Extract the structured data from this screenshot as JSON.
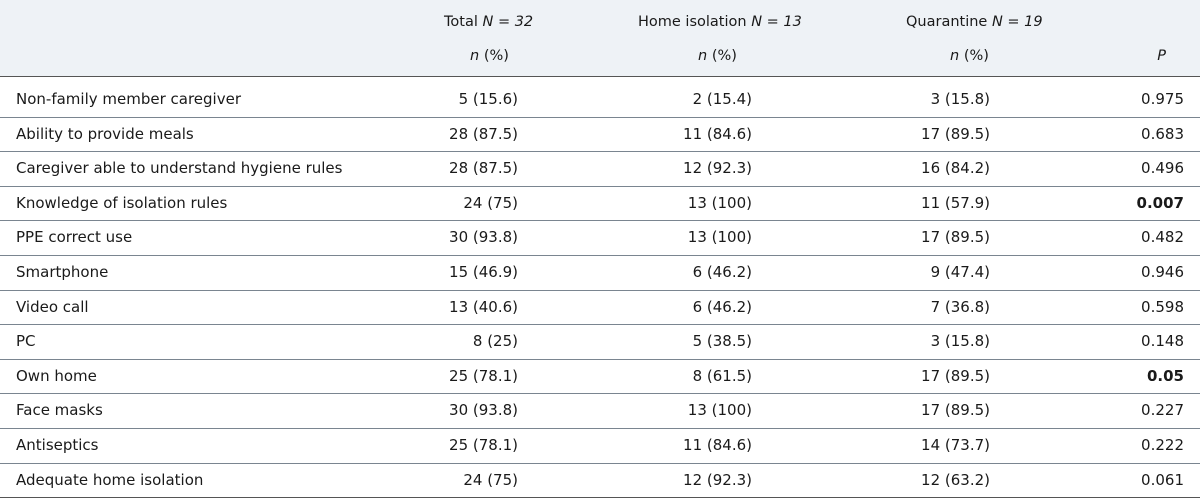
{
  "header": {
    "total": "Total",
    "total_n": "N = 32",
    "home": "Home isolation",
    "home_n": "N = 13",
    "quarantine": "Quarantine",
    "quarantine_n": "N = 19",
    "sub_n": "n",
    "sub_pct": "(%)",
    "p": "P"
  },
  "rows": [
    {
      "label": "Non-family member caregiver",
      "total": "5 (15.6)",
      "home": "2 (15.4)",
      "quarantine": "3 (15.8)",
      "p": "0.975",
      "p_bold": false
    },
    {
      "label": "Ability to provide meals",
      "total": "28 (87.5)",
      "home": "11 (84.6)",
      "quarantine": "17 (89.5)",
      "p": "0.683",
      "p_bold": false
    },
    {
      "label": "Caregiver able to understand hygiene rules",
      "total": "28 (87.5)",
      "home": "12 (92.3)",
      "quarantine": "16 (84.2)",
      "p": "0.496",
      "p_bold": false
    },
    {
      "label": "Knowledge of isolation rules",
      "total": "24 (75)",
      "home": "13 (100)",
      "quarantine": "11 (57.9)",
      "p": "0.007",
      "p_bold": true
    },
    {
      "label": "PPE correct use",
      "total": "30 (93.8)",
      "home": "13 (100)",
      "quarantine": "17 (89.5)",
      "p": "0.482",
      "p_bold": false
    },
    {
      "label": "Smartphone",
      "total": "15 (46.9)",
      "home": "6 (46.2)",
      "quarantine": "9 (47.4)",
      "p": "0.946",
      "p_bold": false
    },
    {
      "label": "Video call",
      "total": "13 (40.6)",
      "home": "6 (46.2)",
      "quarantine": "7 (36.8)",
      "p": "0.598",
      "p_bold": false
    },
    {
      "label": "PC",
      "total": "8 (25)",
      "home": "5 (38.5)",
      "quarantine": "3 (15.8)",
      "p": "0.148",
      "p_bold": false
    },
    {
      "label": "Own home",
      "total": "25 (78.1)",
      "home": "8 (61.5)",
      "quarantine": "17 (89.5)",
      "p": "0.05",
      "p_bold": true
    },
    {
      "label": "Face masks",
      "total": "30 (93.8)",
      "home": "13 (100)",
      "quarantine": "17 (89.5)",
      "p": "0.227",
      "p_bold": false
    },
    {
      "label": "Antiseptics",
      "total": "25 (78.1)",
      "home": "11 (84.6)",
      "quarantine": "14 (73.7)",
      "p": "0.222",
      "p_bold": false
    },
    {
      "label": "Adequate home isolation",
      "total": "24 (75)",
      "home": "12 (92.3)",
      "quarantine": "12 (63.2)",
      "p": "0.061",
      "p_bold": false
    }
  ]
}
